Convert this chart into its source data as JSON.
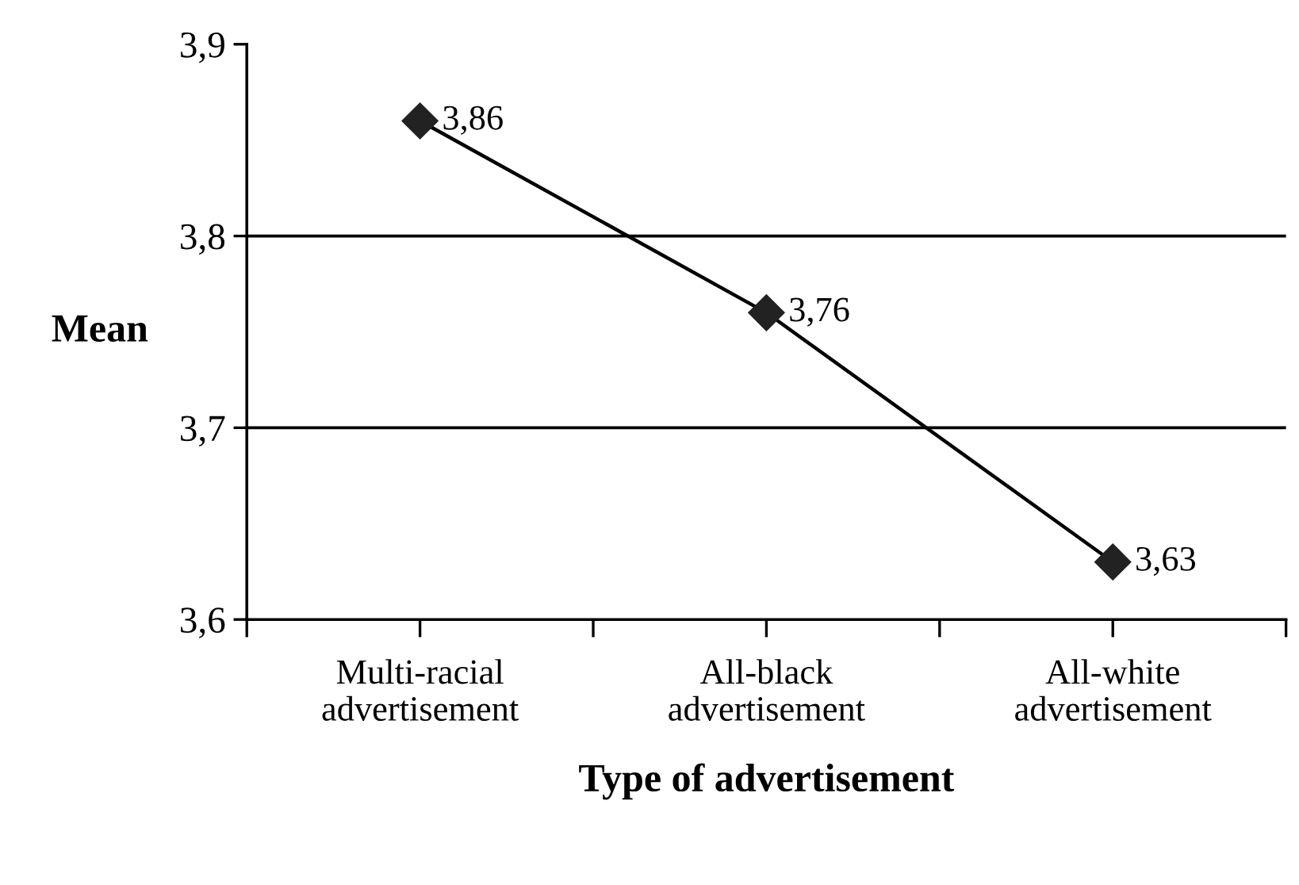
{
  "chart_data": {
    "type": "line",
    "xlabel": "Type of advertisement",
    "ylabel": "Mean",
    "categories": [
      "Multi-racial\nadvertisement",
      "All-black\nadvertisement",
      "All-white\nadvertisement"
    ],
    "series": [
      {
        "color": "#222222",
        "values": [
          3.86,
          3.76,
          3.63
        ],
        "value_labels": [
          "3,86",
          "3,76",
          "3,63"
        ]
      }
    ],
    "ylim": [
      3.6,
      3.9
    ],
    "yticks": [
      {
        "value": 3.6,
        "label": "3,6"
      },
      {
        "value": 3.7,
        "label": "3,7"
      },
      {
        "value": 3.8,
        "label": "3,8"
      },
      {
        "value": 3.9,
        "label": "3,9"
      }
    ],
    "grid": "y",
    "marker": "diamond",
    "line_style": "solid",
    "legend": false
  }
}
